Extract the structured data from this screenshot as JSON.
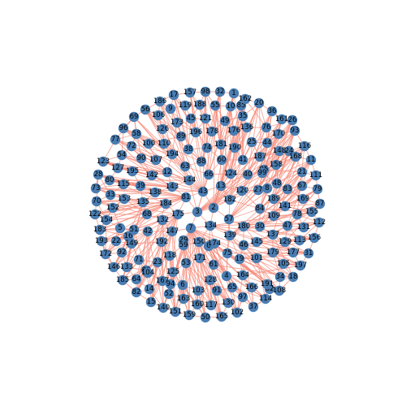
{
  "graph": {
    "node_count": 198,
    "node_color": "#4a7db2",
    "edge_color": "#f58a78",
    "background": "#ffffff",
    "labels": [
      "0",
      "1",
      "2",
      "3",
      "4",
      "5",
      "6",
      "7",
      "8",
      "9",
      "10",
      "11",
      "12",
      "13",
      "14",
      "15",
      "16",
      "17",
      "18",
      "19",
      "20",
      "21",
      "22",
      "23",
      "24",
      "25",
      "26",
      "27",
      "28",
      "29",
      "30",
      "31",
      "32",
      "33",
      "34",
      "35",
      "36",
      "37",
      "38",
      "39",
      "40",
      "41",
      "42",
      "43",
      "44",
      "45",
      "46",
      "47",
      "48",
      "49",
      "50",
      "51",
      "52",
      "53",
      "54",
      "55",
      "56",
      "57",
      "58",
      "59",
      "60",
      "61",
      "62",
      "63",
      "64",
      "65",
      "66",
      "67",
      "68",
      "69",
      "70",
      "71",
      "72",
      "73",
      "74",
      "75",
      "76",
      "77",
      "78",
      "79",
      "80",
      "81",
      "82",
      "83",
      "84",
      "85",
      "86",
      "87",
      "88",
      "89",
      "90",
      "91",
      "92",
      "93",
      "94",
      "95",
      "96",
      "97",
      "98",
      "99",
      "100",
      "101",
      "102",
      "103",
      "104",
      "105",
      "106",
      "107",
      "108",
      "109",
      "110",
      "111",
      "112",
      "113",
      "114",
      "115",
      "116",
      "117",
      "118",
      "119",
      "120",
      "121",
      "122",
      "123",
      "124",
      "125",
      "126",
      "127",
      "128",
      "129",
      "130",
      "131",
      "132",
      "133",
      "134",
      "135",
      "136",
      "137",
      "138",
      "139",
      "140",
      "141",
      "142",
      "143",
      "144",
      "145",
      "146",
      "147",
      "148",
      "149",
      "150",
      "151",
      "152",
      "153",
      "154",
      "155",
      "156",
      "157",
      "158",
      "159",
      "160",
      "161",
      "162",
      "163",
      "164",
      "165",
      "166",
      "167",
      "168",
      "169",
      "170",
      "171",
      "172",
      "173",
      "174",
      "175",
      "176",
      "177",
      "178",
      "179",
      "180",
      "181",
      "182",
      "183",
      "184",
      "185",
      "186",
      "187",
      "188",
      "189",
      "190",
      "191",
      "192",
      "193",
      "194",
      "195",
      "196",
      "197"
    ]
  }
}
